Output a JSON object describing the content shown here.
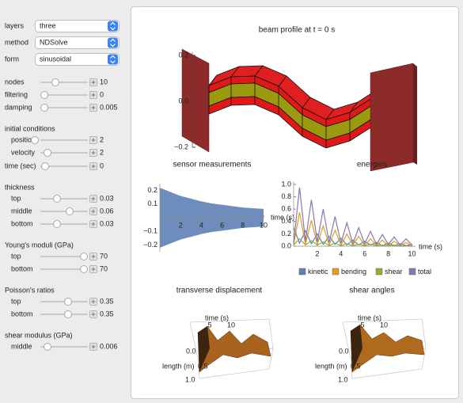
{
  "controls": {
    "popups": [
      {
        "label": "layers",
        "value": "three"
      },
      {
        "label": "method",
        "value": "NDSolve"
      },
      {
        "label": "form",
        "value": "sinusoidal"
      }
    ],
    "slider_groups": [
      {
        "items": [
          {
            "label": "nodes",
            "value": 10
          },
          {
            "label": "filtering",
            "value": 0
          },
          {
            "label": "damping",
            "value": 0.005
          }
        ]
      },
      {
        "title": "initial conditions",
        "items": [
          {
            "label": "position",
            "value": 2
          },
          {
            "label": "velocity",
            "value": 2
          }
        ]
      },
      {
        "items": [
          {
            "label": "time (sec)",
            "value": 0
          }
        ]
      },
      {
        "title": "thickness",
        "items": [
          {
            "label": "top",
            "value": 0.03
          },
          {
            "label": "middle",
            "value": 0.06
          },
          {
            "label": "bottom",
            "value": 0.03
          }
        ]
      },
      {
        "title": "Young's moduli (GPa)",
        "items": [
          {
            "label": "top",
            "value": 70
          },
          {
            "label": "bottom",
            "value": 70
          }
        ]
      },
      {
        "title": "Poisson's ratios",
        "items": [
          {
            "label": "top",
            "value": 0.35
          },
          {
            "label": "bottom",
            "value": 0.35
          }
        ]
      },
      {
        "title": "shear modulus (GPa)",
        "items": [
          {
            "label": "middle",
            "value": 0.006
          }
        ]
      }
    ]
  },
  "plots": {
    "beam_profile": {
      "title": "beam profile at t = 0 s",
      "zticks": [
        0.2,
        {
          "value": 0,
          "label": "0.0"
        },
        {
          "value": -0.2,
          "label": "−0.2"
        }
      ]
    },
    "sensor": {
      "type": "area",
      "title": "sensor measurements",
      "xlabel": "time (s)",
      "x": [
        0,
        1,
        2,
        3,
        4,
        5,
        6,
        7,
        8,
        9,
        10
      ],
      "series": [
        {
          "color": "#5e81b5",
          "values": [
            0.22,
            0.19,
            0.16,
            0.14,
            0.12,
            0.105,
            0.095,
            0.085,
            0.075,
            0.07,
            0.065
          ]
        },
        {
          "color": "#5e81b5",
          "values": [
            -0.22,
            -0.19,
            -0.16,
            -0.14,
            -0.12,
            -0.105,
            -0.095,
            -0.085,
            -0.075,
            -0.07,
            -0.065
          ]
        }
      ],
      "xlim": [
        0,
        10
      ],
      "ylim": [
        -0.25,
        0.25
      ],
      "xticks": [
        2,
        4,
        6,
        8,
        10
      ],
      "yticks": [
        0.2,
        0.1,
        {
          "value": -0.1,
          "label": "−0.1"
        },
        {
          "value": -0.2,
          "label": "−0.2"
        }
      ]
    },
    "energies": {
      "type": "line",
      "title": "energies",
      "xlabel": "time (s)",
      "x": [
        0,
        0.5,
        1,
        1.5,
        2,
        2.5,
        3,
        3.5,
        4,
        4.5,
        5,
        5.5,
        6,
        6.5,
        7,
        7.5,
        8,
        8.5,
        9,
        9.5,
        10
      ],
      "series": [
        {
          "name": "kinetic",
          "color": "#5e81b5",
          "values": [
            0.3,
            0.05,
            0.25,
            0.04,
            0.2,
            0.03,
            0.16,
            0.03,
            0.13,
            0.02,
            0.1,
            0.02,
            0.08,
            0.02,
            0.06,
            0.01,
            0.05,
            0.01,
            0.04,
            0.01,
            0.03
          ]
        },
        {
          "name": "bending",
          "color": "#e19c24",
          "values": [
            0.02,
            0.55,
            0.03,
            0.42,
            0.03,
            0.33,
            0.02,
            0.26,
            0.02,
            0.2,
            0.02,
            0.16,
            0.01,
            0.12,
            0.01,
            0.1,
            0.01,
            0.08,
            0.01,
            0.06,
            0.01
          ]
        },
        {
          "name": "shear",
          "color": "#8fb032",
          "values": [
            0.02,
            0.12,
            0.02,
            0.09,
            0.02,
            0.07,
            0.01,
            0.05,
            0.01,
            0.04,
            0.01,
            0.03,
            0.01,
            0.03,
            0.01,
            0.02,
            0.01,
            0.02,
            0,
            0.01,
            0
          ]
        },
        {
          "name": "total",
          "color": "#8778b3",
          "values": [
            0.05,
            0.95,
            0.08,
            0.75,
            0.07,
            0.6,
            0.06,
            0.48,
            0.05,
            0.38,
            0.04,
            0.3,
            0.04,
            0.24,
            0.03,
            0.19,
            0.03,
            0.15,
            0.02,
            0.12,
            0.02
          ]
        }
      ],
      "xlim": [
        0,
        10.3
      ],
      "ylim": [
        0,
        1.05
      ],
      "xticks": [
        2,
        4,
        6,
        8,
        10
      ],
      "yticks": [
        {
          "value": 0,
          "label": "0.0"
        },
        0.2,
        0.4,
        0.6,
        0.8,
        {
          "value": 1,
          "label": "1.0"
        }
      ]
    },
    "transverse_displacement": {
      "title": "transverse displacement",
      "xlabel": "time (s)",
      "ylabel": "length (m)",
      "xticks": [
        5,
        10
      ],
      "yticks": [
        {
          "value": 0,
          "label": "0.0"
        },
        {
          "value": 0.5,
          "label": "0.5"
        },
        {
          "value": 1,
          "label": "1.0"
        }
      ]
    },
    "shear_angles": {
      "title": "shear angles",
      "xlabel": "time (s)",
      "ylabel": "length (m)",
      "xticks": [
        5,
        10
      ],
      "yticks": [
        {
          "value": 0,
          "label": "0.0"
        },
        {
          "value": 0.5,
          "label": "0.5"
        },
        {
          "value": 1,
          "label": "1.0"
        }
      ]
    }
  }
}
